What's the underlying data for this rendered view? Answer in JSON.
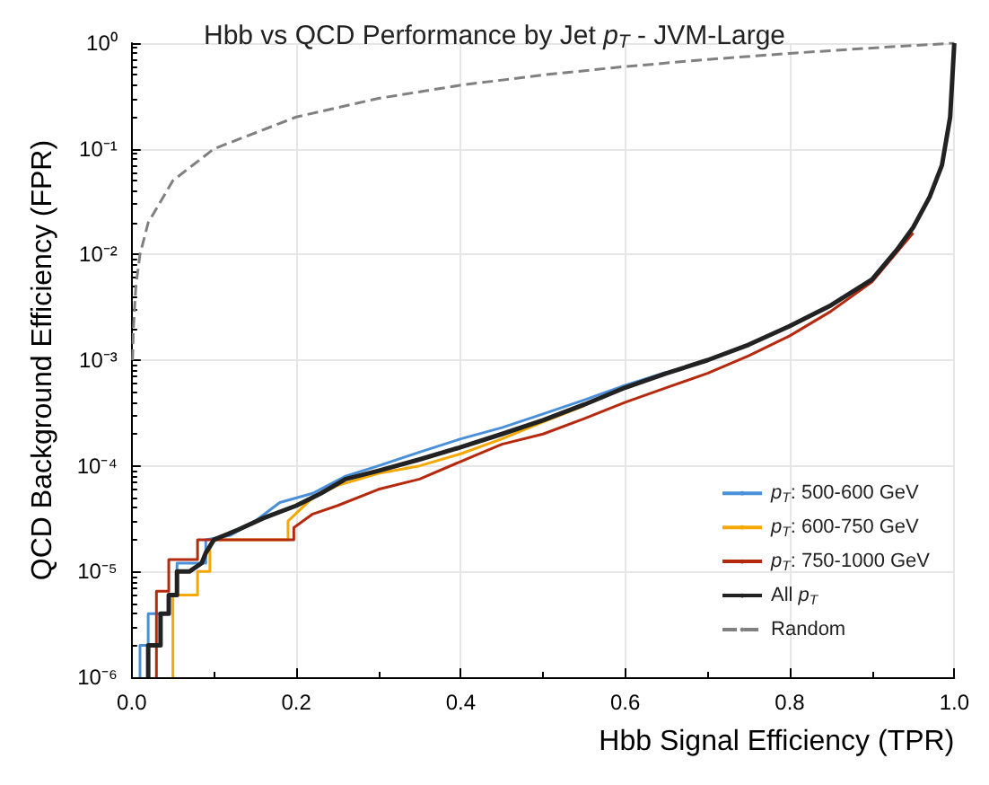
{
  "chart_data": {
    "type": "line",
    "title": "Hbb vs QCD Performance by Jet p$_{T}$ - JVM-Large",
    "xlabel": "Hbb Signal Efficiency (TPR)",
    "ylabel": "QCD Background Efficiency (FPR)",
    "log": "y",
    "grid": true,
    "legend": "bottom right",
    "marker": "none",
    "xlim": [
      0,
      1
    ],
    "ylim": [
      1e-06,
      1
    ],
    "xticks": [
      {
        "value": 0,
        "label": "0.0"
      },
      0.2,
      0.4,
      0.6,
      0.8,
      {
        "value": 1,
        "label": "1.0"
      }
    ],
    "yticks": [
      {
        "value": 1e-06,
        "label": "10⁻⁶"
      },
      {
        "value": 1e-05,
        "label": "10⁻⁵"
      },
      {
        "value": 0.0001,
        "label": "10⁻⁴"
      },
      {
        "value": 0.001,
        "label": "10⁻³"
      },
      {
        "value": 0.01,
        "label": "10⁻²"
      },
      {
        "value": 0.1,
        "label": "10⁻¹"
      },
      {
        "value": 1,
        "label": "10⁰"
      }
    ],
    "series": [
      {
        "name": "p$_{T}$: 500-600 GeV",
        "color": "#4a90d9",
        "x": [
          0.01,
          0.01,
          0.02,
          0.02,
          0.045,
          0.045,
          0.055,
          0.055,
          0.09,
          0.09,
          0.12,
          0.15,
          0.18,
          0.22,
          0.26,
          0.3,
          0.35,
          0.4,
          0.45,
          0.5,
          0.55,
          0.6,
          0.65
        ],
        "values": [
          1e-06,
          2e-06,
          2e-06,
          4e-06,
          4e-06,
          6e-06,
          6e-06,
          1.2e-05,
          1.2e-05,
          2e-05,
          2.2e-05,
          3e-05,
          4.5e-05,
          5.5e-05,
          8e-05,
          0.0001,
          0.000135,
          0.00018,
          0.00023,
          0.00031,
          0.00042,
          0.00058,
          0.00077
        ]
      },
      {
        "name": "p$_{T}$: 600-750 GeV",
        "color": "#f5a800",
        "x": [
          0.05,
          0.05,
          0.08,
          0.08,
          0.095,
          0.095,
          0.1,
          0.19,
          0.19,
          0.22,
          0.25,
          0.3,
          0.35,
          0.4,
          0.45,
          0.5,
          0.55
        ],
        "values": [
          1e-06,
          6e-06,
          6e-06,
          1e-05,
          1e-05,
          1.8e-05,
          2e-05,
          2e-05,
          3e-05,
          5e-05,
          6.5e-05,
          8.5e-05,
          0.0001,
          0.00013,
          0.00018,
          0.00026,
          0.00037
        ]
      },
      {
        "name": "p$_{T}$: 750-1000 GeV",
        "color": "#b52a0e",
        "x": [
          0.03,
          0.03,
          0.045,
          0.045,
          0.08,
          0.08,
          0.197,
          0.197,
          0.22,
          0.25,
          0.3,
          0.35,
          0.4,
          0.45,
          0.5,
          0.55,
          0.6,
          0.65,
          0.7,
          0.75,
          0.8,
          0.85,
          0.9,
          0.95
        ],
        "values": [
          1e-06,
          6.5e-06,
          6.5e-06,
          1.3e-05,
          1.3e-05,
          2e-05,
          2e-05,
          2.6e-05,
          3.5e-05,
          4.2e-05,
          6e-05,
          7.5e-05,
          0.00011,
          0.00016,
          0.0002,
          0.00028,
          0.0004,
          0.00055,
          0.00075,
          0.0011,
          0.0017,
          0.0029,
          0.0055,
          0.016
        ]
      },
      {
        "name": "All p$_{T}$",
        "color": "#222222",
        "x": [
          0.02,
          0.02,
          0.035,
          0.035,
          0.045,
          0.045,
          0.055,
          0.055,
          0.07,
          0.085,
          0.09,
          0.1,
          0.13,
          0.16,
          0.2,
          0.23,
          0.26,
          0.3,
          0.35,
          0.4,
          0.45,
          0.5,
          0.55,
          0.6,
          0.65,
          0.7,
          0.75,
          0.8,
          0.85,
          0.9,
          0.93,
          0.95,
          0.97,
          0.985,
          0.995,
          1
        ],
        "values": [
          1e-06,
          2e-06,
          2e-06,
          4e-06,
          4e-06,
          6e-06,
          6e-06,
          1e-05,
          1e-05,
          1.2e-05,
          1.5e-05,
          2e-05,
          2.5e-05,
          3.2e-05,
          4.2e-05,
          5.5e-05,
          7.5e-05,
          9e-05,
          0.000115,
          0.00015,
          0.0002,
          0.00027,
          0.00038,
          0.00055,
          0.00075,
          0.001,
          0.0014,
          0.0021,
          0.0033,
          0.0058,
          0.011,
          0.018,
          0.035,
          0.07,
          0.2,
          1
        ]
      },
      {
        "name": "Random",
        "line_style": "dashed",
        "color": "#808080",
        "x": [
          0.001,
          0.002,
          0.005,
          0.01,
          0.02,
          0.05,
          0.1,
          0.2,
          0.3,
          0.4,
          0.5,
          0.6,
          0.7,
          0.8,
          0.9,
          1
        ],
        "values": [
          0.001,
          0.002,
          0.005,
          0.01,
          0.02,
          0.05,
          0.1,
          0.2,
          0.3,
          0.4,
          0.5,
          0.6,
          0.7,
          0.8,
          0.9,
          1
        ]
      }
    ]
  }
}
